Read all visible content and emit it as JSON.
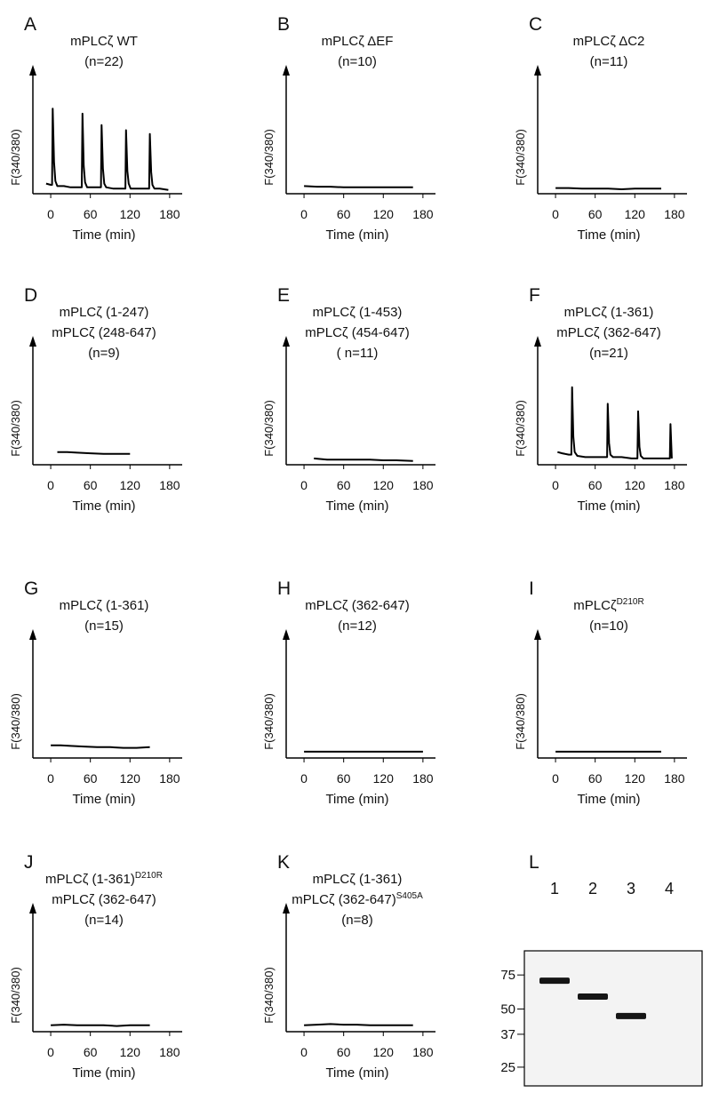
{
  "chart_data": [
    {
      "type": "line",
      "panel": "A",
      "title": [
        "mPLCζ WT",
        "(n=22)"
      ],
      "xlabel": "Time (min)",
      "ylabel": "F(340/380)",
      "xlim": [
        -27,
        199
      ],
      "xticks": [
        0,
        60,
        120,
        180
      ],
      "ylim": [
        0,
        1
      ],
      "x": [
        -7,
        0,
        2,
        3,
        5,
        7,
        10,
        20,
        30,
        40,
        47,
        48,
        50,
        52,
        55,
        65,
        76,
        77,
        79,
        81,
        84,
        95,
        105,
        113,
        114,
        116,
        118,
        121,
        130,
        140,
        149,
        150,
        152,
        154,
        157,
        165,
        178
      ],
      "values": [
        0.08,
        0.07,
        0.07,
        0.67,
        0.25,
        0.1,
        0.06,
        0.06,
        0.05,
        0.05,
        0.05,
        0.63,
        0.22,
        0.09,
        0.05,
        0.05,
        0.05,
        0.54,
        0.2,
        0.08,
        0.05,
        0.04,
        0.04,
        0.04,
        0.5,
        0.18,
        0.08,
        0.04,
        0.04,
        0.04,
        0.04,
        0.47,
        0.17,
        0.07,
        0.04,
        0.04,
        0.03
      ]
    },
    {
      "type": "line",
      "panel": "B",
      "title": [
        "mPLCζ ΔEF",
        "(n=10)"
      ],
      "xlabel": "Time (min)",
      "ylabel": "F(340/380)",
      "xlim": [
        -27,
        199
      ],
      "xticks": [
        0,
        60,
        120,
        180
      ],
      "ylim": [
        0,
        1
      ],
      "x": [
        0,
        20,
        40,
        60,
        80,
        100,
        120,
        140,
        165
      ],
      "values": [
        0.06,
        0.055,
        0.055,
        0.05,
        0.05,
        0.05,
        0.05,
        0.05,
        0.05
      ]
    },
    {
      "type": "line",
      "panel": "C",
      "title": [
        "mPLCζ ΔC2",
        "(n=11)"
      ],
      "xlabel": "Time (min)",
      "ylabel": "F(340/380)",
      "xlim": [
        -27,
        199
      ],
      "xticks": [
        0,
        60,
        120,
        180
      ],
      "ylim": [
        0,
        1
      ],
      "x": [
        0,
        20,
        40,
        60,
        80,
        100,
        120,
        140,
        160
      ],
      "values": [
        0.045,
        0.045,
        0.04,
        0.04,
        0.04,
        0.035,
        0.04,
        0.04,
        0.04
      ]
    },
    {
      "type": "line",
      "panel": "D",
      "title": [
        "mPLCζ (1-247)",
        "mPLCζ (248-647)",
        "(n=9)"
      ],
      "xlabel": "Time (min)",
      "ylabel": "F(340/380)",
      "xlim": [
        -27,
        199
      ],
      "xticks": [
        0,
        60,
        120,
        180
      ],
      "ylim": [
        0,
        1
      ],
      "x": [
        10,
        25,
        40,
        60,
        80,
        100,
        120
      ],
      "values": [
        0.1,
        0.1,
        0.095,
        0.09,
        0.085,
        0.085,
        0.085
      ]
    },
    {
      "type": "line",
      "panel": "E",
      "title": [
        "mPLCζ (1-453)",
        "mPLCζ (454-647)",
        "( n=11)"
      ],
      "xlabel": "Time (min)",
      "ylabel": "F(340/380)",
      "xlim": [
        -27,
        199
      ],
      "xticks": [
        0,
        60,
        120,
        180
      ],
      "ylim": [
        0,
        1
      ],
      "x": [
        15,
        35,
        60,
        80,
        100,
        120,
        140,
        165
      ],
      "values": [
        0.05,
        0.04,
        0.04,
        0.04,
        0.04,
        0.035,
        0.035,
        0.03
      ]
    },
    {
      "type": "line",
      "panel": "F",
      "title": [
        "mPLCζ (1-361)",
        "mPLCζ (362-647)",
        "(n=21)"
      ],
      "xlabel": "Time (min)",
      "ylabel": "F(340/380)",
      "xlim": [
        -27,
        199
      ],
      "xticks": [
        0,
        60,
        120,
        180
      ],
      "ylim": [
        0,
        1
      ],
      "x": [
        3,
        10,
        20,
        24,
        25,
        27,
        29,
        33,
        45,
        60,
        78,
        79,
        81,
        83,
        87,
        100,
        115,
        124,
        125,
        127,
        129,
        133,
        150,
        165,
        173,
        174,
        176
      ],
      "values": [
        0.1,
        0.09,
        0.08,
        0.08,
        0.61,
        0.22,
        0.1,
        0.07,
        0.06,
        0.06,
        0.06,
        0.48,
        0.17,
        0.08,
        0.06,
        0.06,
        0.05,
        0.05,
        0.42,
        0.14,
        0.07,
        0.05,
        0.05,
        0.05,
        0.05,
        0.32,
        0.05
      ]
    },
    {
      "type": "line",
      "panel": "G",
      "title": [
        "mPLCζ (1-361)",
        "(n=15)"
      ],
      "xlabel": "Time (min)",
      "ylabel": "F(340/380)",
      "xlim": [
        -27,
        199
      ],
      "xticks": [
        0,
        60,
        120,
        180
      ],
      "ylim": [
        0,
        1
      ],
      "x": [
        0,
        15,
        30,
        50,
        70,
        90,
        110,
        130,
        150
      ],
      "values": [
        0.1,
        0.1,
        0.095,
        0.09,
        0.085,
        0.085,
        0.08,
        0.08,
        0.085
      ]
    },
    {
      "type": "line",
      "panel": "H",
      "title": [
        "mPLCζ (362-647)",
        "(n=12)"
      ],
      "xlabel": "Time (min)",
      "ylabel": "F(340/380)",
      "xlim": [
        -27,
        199
      ],
      "xticks": [
        0,
        60,
        120,
        180
      ],
      "ylim": [
        0,
        1
      ],
      "x": [
        0,
        30,
        60,
        90,
        120,
        150,
        180
      ],
      "values": [
        0.05,
        0.05,
        0.05,
        0.05,
        0.05,
        0.05,
        0.05
      ]
    },
    {
      "type": "line",
      "panel": "I",
      "title": [
        {
          "text": "mPLCζ",
          "sup": "D210R"
        },
        "(n=10)"
      ],
      "xlabel": "Time (min)",
      "ylabel": "F(340/380)",
      "xlim": [
        -27,
        199
      ],
      "xticks": [
        0,
        60,
        120,
        180
      ],
      "ylim": [
        0,
        1
      ],
      "x": [
        0,
        40,
        80,
        120,
        160
      ],
      "values": [
        0.05,
        0.05,
        0.05,
        0.05,
        0.05
      ]
    },
    {
      "type": "line",
      "panel": "J",
      "title": [
        {
          "text": "mPLCζ (1-361)",
          "sup": "D210R"
        },
        "mPLCζ (362-647)",
        "(n=14)"
      ],
      "xlabel": "Time (min)",
      "ylabel": "F(340/380)",
      "xlim": [
        -27,
        199
      ],
      "xticks": [
        0,
        60,
        120,
        180
      ],
      "ylim": [
        0,
        1
      ],
      "x": [
        0,
        20,
        40,
        60,
        80,
        100,
        120,
        150
      ],
      "values": [
        0.05,
        0.055,
        0.05,
        0.05,
        0.05,
        0.045,
        0.05,
        0.05
      ]
    },
    {
      "type": "line",
      "panel": "K",
      "title": [
        "mPLCζ (1-361)",
        {
          "text": "mPLCζ (362-647)",
          "sup": "S405A"
        },
        "(n=8)"
      ],
      "xlabel": "Time (min)",
      "ylabel": "F(340/380)",
      "xlim": [
        -27,
        199
      ],
      "xticks": [
        0,
        60,
        120,
        180
      ],
      "ylim": [
        0,
        1
      ],
      "x": [
        0,
        20,
        40,
        60,
        80,
        100,
        120,
        140,
        165
      ],
      "values": [
        0.05,
        0.055,
        0.06,
        0.055,
        0.055,
        0.05,
        0.05,
        0.05,
        0.05
      ]
    },
    {
      "type": "blot",
      "panel": "L",
      "lanes": [
        "1",
        "2",
        "3",
        "4"
      ],
      "yscale": "log",
      "ylim": [
        20,
        100
      ],
      "yticks": [
        75,
        50,
        37,
        25
      ],
      "values": [
        70,
        58,
        46,
        null
      ]
    }
  ]
}
